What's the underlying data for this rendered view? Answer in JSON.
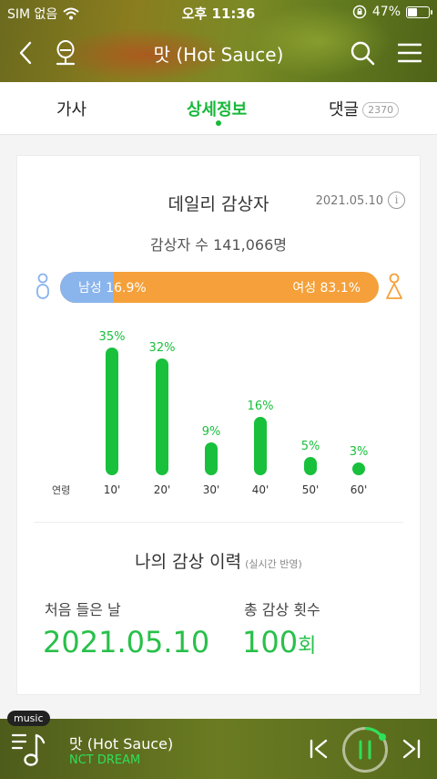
{
  "status_bar": {
    "carrier": "SIM 없음",
    "time": "오후 11:36",
    "battery": "47%"
  },
  "header": {
    "title": "맛 (Hot Sauce)"
  },
  "tabs": [
    {
      "label": "가사"
    },
    {
      "label": "상세정보"
    },
    {
      "label": "댓글",
      "badge": "2370"
    }
  ],
  "daily": {
    "title": "데일리 감상자",
    "date": "2021.05.10",
    "info_icon": "i",
    "listeners_text": "감상자 수 141,066명",
    "male_label": "남성 16.9%",
    "female_label": "여성 83.1%",
    "male_share": 0.169,
    "female_share": 0.831,
    "male_color": "#8ab4ec",
    "female_color": "#f5a03a"
  },
  "chart_data": {
    "type": "bar",
    "xlabel": "연령",
    "categories": [
      "10'",
      "20'",
      "30'",
      "40'",
      "50'",
      "60'"
    ],
    "values": [
      35,
      32,
      9,
      16,
      5,
      3
    ],
    "value_labels": [
      "35%",
      "32%",
      "9%",
      "16%",
      "5%",
      "3%"
    ],
    "color": "#19c03c"
  },
  "history": {
    "title": "나의 감상 이력",
    "subtitle": "(실시간 반영)",
    "first_label": "처음 들은 날",
    "first_value": "2021.05.10",
    "count_label": "총 감상 횟수",
    "count_value": "100",
    "count_unit": "회"
  },
  "player": {
    "badge": "music",
    "title": "맛 (Hot Sauce)",
    "artist": "NCT DREAM"
  },
  "colors": {
    "accent": "#19b83a",
    "value_green": "#28c04a",
    "player_artist": "#2ee05a"
  }
}
